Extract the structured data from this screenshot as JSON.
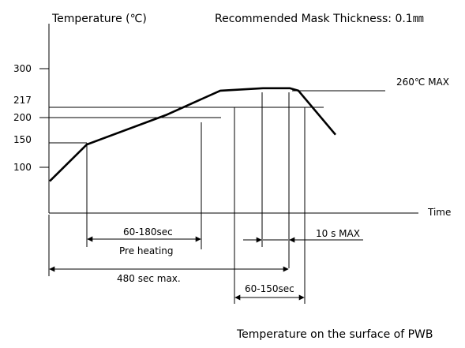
{
  "title_y": "Temperature (℃)",
  "mask_note": "Recommended Mask Thickness: 0.1㎜",
  "time_label": "Time",
  "footer": "Temperature on the surface of  PWB",
  "y_ticks": [
    "300",
    "217",
    "200",
    "150",
    "100"
  ],
  "peak_label": "260℃ MAX",
  "annotations": {
    "preheat_time": "60-180sec",
    "preheat_name": "Pre heating",
    "total_time": "480 sec max.",
    "peak_time": "10 s MAX",
    "liquidus_time": "60-150sec"
  },
  "chart_data": {
    "type": "line",
    "ylabel": "Temperature (℃)",
    "xlabel": "Time",
    "series": [
      {
        "values": [
          70,
          145,
          205,
          255,
          260,
          260,
          255,
          165
        ]
      }
    ]
  }
}
